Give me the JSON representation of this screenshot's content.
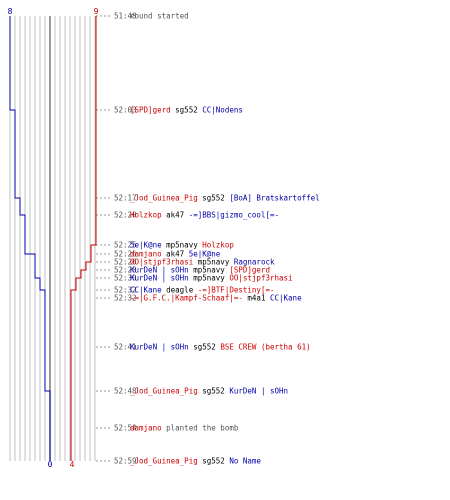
{
  "colors": {
    "red": "#cc0000",
    "blue": "#0000aa",
    "neutral": "#555555",
    "grid": "#c0c0c0",
    "center": "#777777"
  },
  "counters": {
    "blue_start": "8",
    "red_start": "9",
    "blue_end": "0",
    "red_end": "4"
  },
  "events": [
    {
      "time": "51:48",
      "parts": [
        {
          "t": "round started",
          "c": "plain"
        }
      ]
    },
    {
      "time": "52:03",
      "parts": [
        {
          "t": "[SPD]gerd",
          "c": "red"
        },
        {
          "t": " sg552 ",
          "c": "black"
        },
        {
          "t": "CC|Nodens",
          "c": "blue"
        }
      ]
    },
    {
      "time": "52:17",
      "parts": [
        {
          "t": "_Jod_Guinea_Pig",
          "c": "red"
        },
        {
          "t": " sg552 ",
          "c": "black"
        },
        {
          "t": "[BoA] Bratskartoffel",
          "c": "blue"
        }
      ]
    },
    {
      "time": "52:20",
      "parts": [
        {
          "t": "Holzkop",
          "c": "red"
        },
        {
          "t": " ak47 ",
          "c": "black"
        },
        {
          "t": "-=]BBS|gizmo_cool[=-",
          "c": "blue"
        }
      ]
    },
    {
      "time": "52:25",
      "parts": [
        {
          "t": "5e|K@ne",
          "c": "blue"
        },
        {
          "t": " mp5navy ",
          "c": "black"
        },
        {
          "t": "Holzkop",
          "c": "red"
        }
      ]
    },
    {
      "time": "52:26",
      "parts": [
        {
          "t": "damjano",
          "c": "red"
        },
        {
          "t": " ak47 ",
          "c": "black"
        },
        {
          "t": "5e|K@ne",
          "c": "blue"
        }
      ]
    },
    {
      "time": "52:26",
      "parts": [
        {
          "t": "OO|stjpf3rhasi",
          "c": "red"
        },
        {
          "t": " mp5navy ",
          "c": "black"
        },
        {
          "t": "Ragnarock",
          "c": "blue"
        }
      ]
    },
    {
      "time": "52:28",
      "parts": [
        {
          "t": "KurDeN | sOHn",
          "c": "blue"
        },
        {
          "t": " mp5navy ",
          "c": "black"
        },
        {
          "t": "[SPD]gerd",
          "c": "red"
        }
      ]
    },
    {
      "time": "52:30",
      "parts": [
        {
          "t": "KurDeN | sOHn",
          "c": "blue"
        },
        {
          "t": " mp5navy ",
          "c": "black"
        },
        {
          "t": "OO|stjpf3rhasi",
          "c": "red"
        }
      ]
    },
    {
      "time": "52:32",
      "parts": [
        {
          "t": "CC|Kane",
          "c": "blue"
        },
        {
          "t": " deagle ",
          "c": "black"
        },
        {
          "t": "-=]BTF|Destiny[=-",
          "c": "red"
        }
      ]
    },
    {
      "time": "52:32",
      "parts": [
        {
          "t": "-=|G.F.C.|Kampf-Schaaf|=-",
          "c": "red"
        },
        {
          "t": " m4a1 ",
          "c": "black"
        },
        {
          "t": "CC|Kane",
          "c": "blue"
        }
      ]
    },
    {
      "time": "52:41",
      "parts": [
        {
          "t": "KurDeN | sOHn",
          "c": "blue"
        },
        {
          "t": " sg552 ",
          "c": "black"
        },
        {
          "t": "BSE CREW (bertha 61)",
          "c": "red"
        }
      ]
    },
    {
      "time": "52:48",
      "parts": [
        {
          "t": "_Jod_Guinea_Pig",
          "c": "red"
        },
        {
          "t": " sg552 ",
          "c": "black"
        },
        {
          "t": "KurDeN | sOHn",
          "c": "blue"
        }
      ]
    },
    {
      "time": "52:54",
      "parts": [
        {
          "t": "damjano",
          "c": "red"
        },
        {
          "t": " planted the bomb",
          "c": "plain"
        }
      ]
    },
    {
      "time": "52:59",
      "parts": [
        {
          "t": "_Jod_Guinea_Pig",
          "c": "red"
        },
        {
          "t": " sg552 ",
          "c": "black"
        },
        {
          "t": "No Name",
          "c": "blue"
        }
      ]
    }
  ]
}
